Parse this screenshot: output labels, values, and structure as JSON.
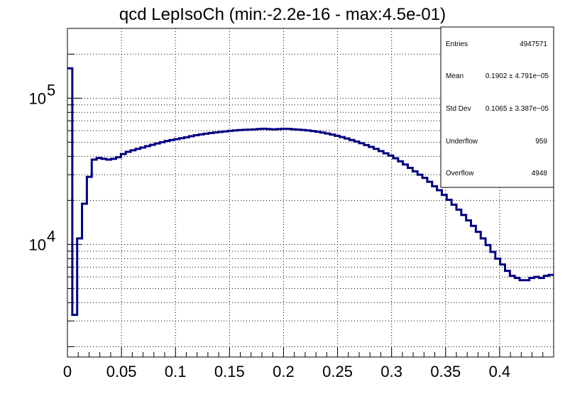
{
  "chart_data": {
    "type": "line",
    "title": "qcd LepIsoCh (min:-2.2e-16 - max:4.5e-01)",
    "xlabel": "",
    "ylabel": "",
    "xlim": [
      0,
      0.45
    ],
    "ylim": [
      1700,
      300000
    ],
    "y_scale": "log",
    "grid": true,
    "line_color": "#000080",
    "x_ticks": [
      "0",
      "0.05",
      "0.1",
      "0.15",
      "0.2",
      "0.25",
      "0.3",
      "0.35",
      "0.4"
    ],
    "x_tick_values": [
      0,
      0.05,
      0.1,
      0.15,
      0.2,
      0.25,
      0.3,
      0.35,
      0.4
    ],
    "y_ticks": [
      {
        "value": 10000,
        "base": "10",
        "exp": "4"
      },
      {
        "value": 100000,
        "base": "10",
        "exp": "5"
      }
    ],
    "bin_width": 0.0045,
    "series": [
      {
        "values": [
          160000,
          3300,
          11000,
          19000,
          29000,
          38000,
          39000,
          38500,
          38000,
          38500,
          39500,
          41500,
          43000,
          44000,
          45000,
          46000,
          47000,
          48000,
          49000,
          50000,
          51000,
          51800,
          52500,
          53200,
          54000,
          55000,
          55800,
          56500,
          57200,
          57800,
          58300,
          58800,
          59300,
          59800,
          60200,
          60500,
          60800,
          61000,
          61200,
          61600,
          61800,
          61500,
          61200,
          61500,
          61800,
          61700,
          61300,
          61000,
          60600,
          60200,
          59600,
          59000,
          58200,
          57300,
          56400,
          55300,
          54200,
          53000,
          51800,
          50500,
          49200,
          47800,
          46400,
          45000,
          43500,
          42000,
          40500,
          38800,
          37000,
          35200,
          33400,
          31600,
          30000,
          28500,
          26800,
          25000,
          23500,
          21800,
          20200,
          18700,
          17300,
          15900,
          14600,
          13400,
          12200,
          11000,
          9900,
          8900,
          8000,
          7300,
          6600,
          6100,
          5900,
          5700,
          5700,
          5900,
          6000,
          5900,
          6100,
          6200
        ]
      }
    ]
  },
  "stats": {
    "entries_label": "Entries",
    "entries_value": "4947571",
    "mean_label": "Mean",
    "mean_value": "0.1902 ± 4.791e−05",
    "stddev_label": "Std Dev",
    "stddev_value": "0.1065 ± 3.387e−05",
    "underflow_label": "Underflow",
    "underflow_value": "959",
    "overflow_label": "Overflow",
    "overflow_value": "4948"
  }
}
